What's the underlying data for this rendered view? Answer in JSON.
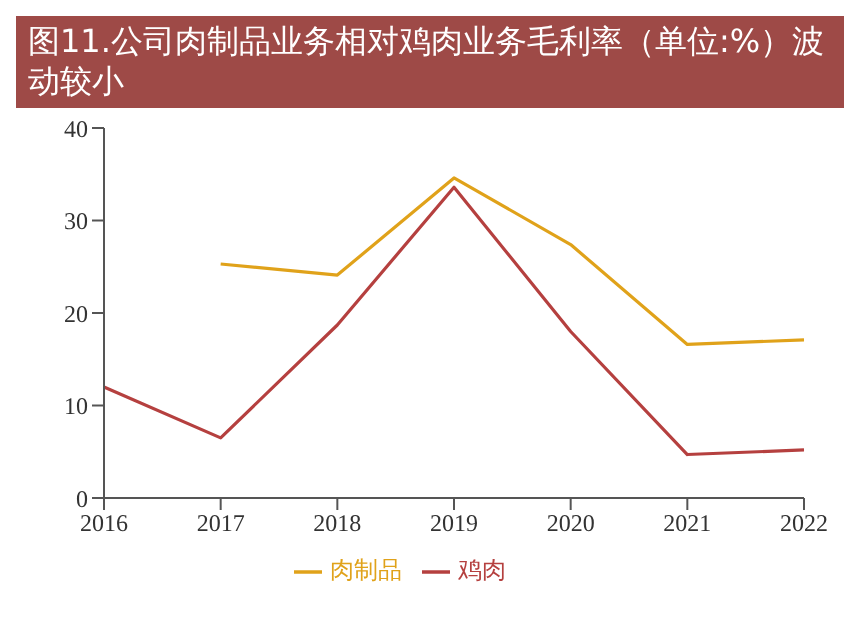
{
  "chart_data": {
    "type": "line",
    "title": "图11.公司肉制品业务相对鸡肉业务毛利率（单位:%）波动较小",
    "categories": [
      "2016",
      "2017",
      "2018",
      "2019",
      "2020",
      "2021",
      "2022"
    ],
    "series": [
      {
        "name": "鸡肉",
        "color": "#b5403f",
        "values": [
          12,
          6.5,
          18.7,
          33.6,
          18,
          4.7,
          5.2
        ]
      },
      {
        "name": "肉制品",
        "color": "#e0a21a",
        "values": [
          null,
          25.3,
          24.1,
          34.6,
          27.4,
          16.6,
          17.1
        ]
      }
    ],
    "ylim": [
      0,
      40
    ],
    "yticks": [
      0,
      10,
      20,
      30,
      40
    ],
    "grid": false,
    "legend": "bottom",
    "marker": "none",
    "line_style": "solid"
  }
}
